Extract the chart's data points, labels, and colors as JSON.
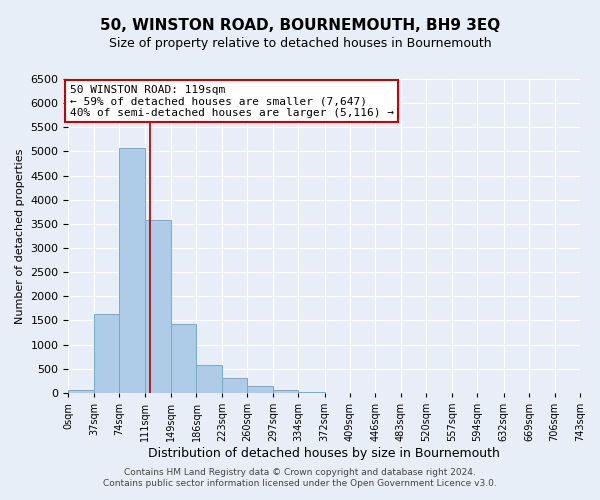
{
  "title": "50, WINSTON ROAD, BOURNEMOUTH, BH9 3EQ",
  "subtitle": "Size of property relative to detached houses in Bournemouth",
  "xlabel": "Distribution of detached houses by size in Bournemouth",
  "ylabel": "Number of detached properties",
  "bar_edges": [
    0,
    37,
    74,
    111,
    149,
    186,
    223,
    260,
    297,
    334,
    372,
    409,
    446,
    483,
    520,
    557,
    594,
    632,
    669,
    706,
    743
  ],
  "bar_heights": [
    60,
    1630,
    5080,
    3580,
    1420,
    580,
    300,
    140,
    60,
    10,
    0,
    0,
    0,
    0,
    0,
    0,
    0,
    0,
    0,
    0
  ],
  "bar_color": "#aecce8",
  "bar_edgecolor": "#7aaac8",
  "property_line_x": 119,
  "property_line_color": "#aa0000",
  "ylim": [
    0,
    6500
  ],
  "yticks": [
    0,
    500,
    1000,
    1500,
    2000,
    2500,
    3000,
    3500,
    4000,
    4500,
    5000,
    5500,
    6000,
    6500
  ],
  "xtick_labels": [
    "0sqm",
    "37sqm",
    "74sqm",
    "111sqm",
    "149sqm",
    "186sqm",
    "223sqm",
    "260sqm",
    "297sqm",
    "334sqm",
    "372sqm",
    "409sqm",
    "446sqm",
    "483sqm",
    "520sqm",
    "557sqm",
    "594sqm",
    "632sqm",
    "669sqm",
    "706sqm",
    "743sqm"
  ],
  "annotation_title": "50 WINSTON ROAD: 119sqm",
  "annotation_line1": "← 59% of detached houses are smaller (7,647)",
  "annotation_line2": "40% of semi-detached houses are larger (5,116) →",
  "annotation_box_facecolor": "#ffffff",
  "annotation_box_edgecolor": "#cc0000",
  "footer_line1": "Contains HM Land Registry data © Crown copyright and database right 2024.",
  "footer_line2": "Contains public sector information licensed under the Open Government Licence v3.0.",
  "bg_color": "#e8eef8",
  "grid_color": "#ffffff",
  "title_fontsize": 11,
  "subtitle_fontsize": 9,
  "ylabel_fontsize": 8,
  "xlabel_fontsize": 9
}
